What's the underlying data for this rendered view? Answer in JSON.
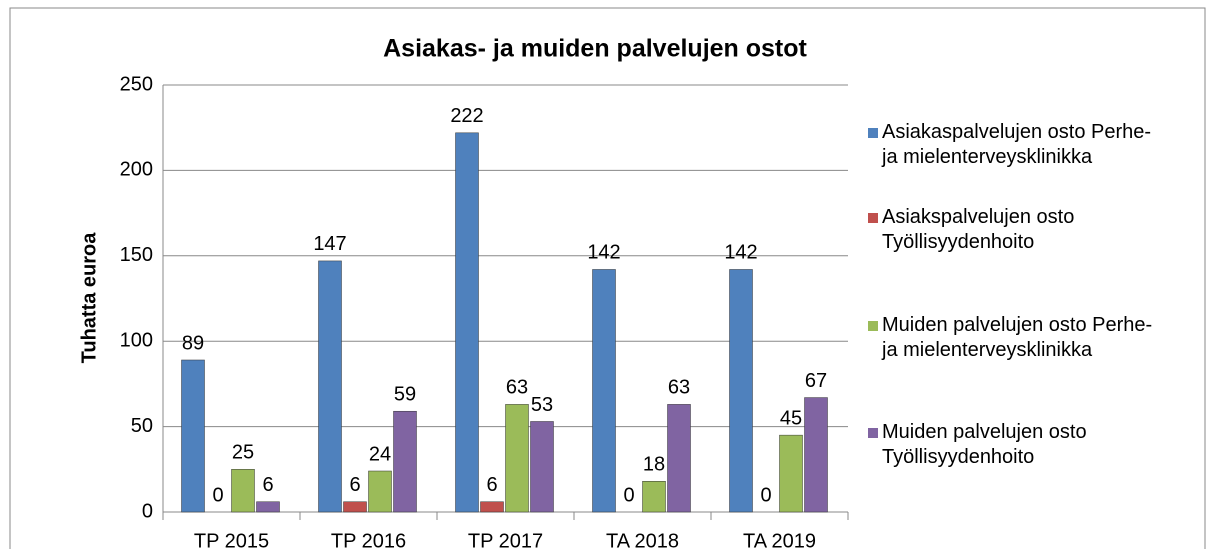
{
  "chart_data": {
    "type": "bar",
    "title": "Asiakas- ja muiden palvelujen ostot",
    "y_label": "Tuhatta euroa",
    "categories": [
      "TP 2015",
      "TP 2016",
      "TP 2017",
      "TA 2018",
      "TA 2019"
    ],
    "series": [
      {
        "name": "Asiakaspalvelujen osto Perhe- ja mielenterveysklinikka",
        "color": "#4f81bd",
        "values": [
          89,
          147,
          222,
          142,
          142
        ]
      },
      {
        "name": "Asiakspalvelujen osto Työllisyydenhoito",
        "color": "#c0504d",
        "values": [
          0,
          6,
          6,
          0,
          0
        ]
      },
      {
        "name": "Muiden palvelujen osto Perhe- ja mielenterveysklinikka",
        "color": "#9bbb59",
        "values": [
          25,
          24,
          63,
          18,
          45
        ]
      },
      {
        "name": "Muiden palvelujen osto Työllisyydenhoito",
        "color": "#8064a2",
        "values": [
          6,
          59,
          53,
          63,
          67
        ]
      }
    ],
    "ylim": [
      0,
      250
    ],
    "yticks": [
      0,
      50,
      100,
      150,
      200,
      250
    ],
    "grid": true,
    "legend": "right"
  }
}
